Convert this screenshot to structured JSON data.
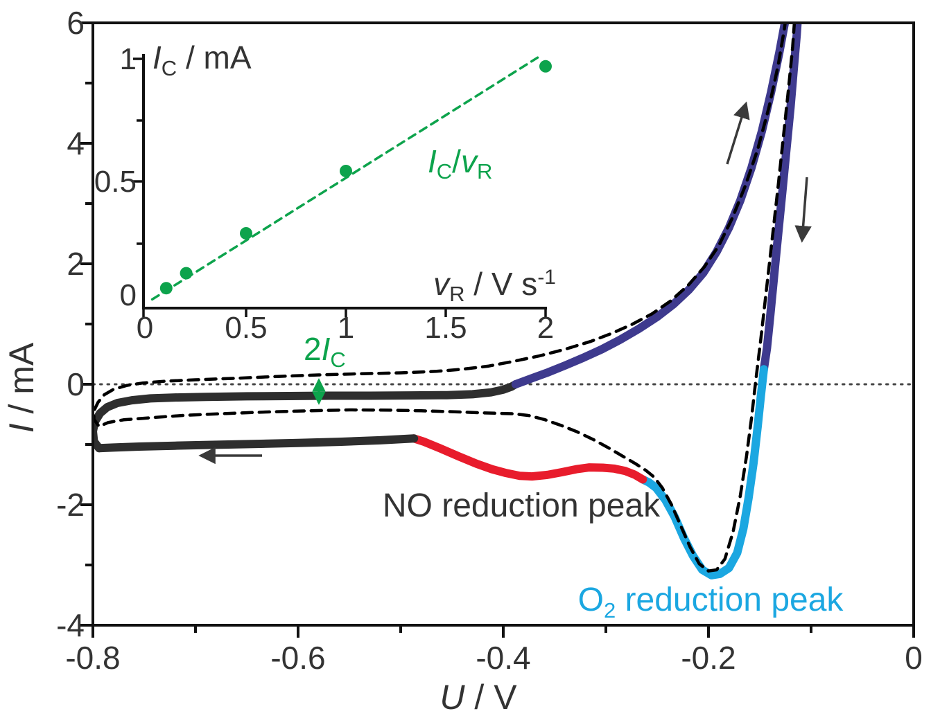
{
  "figure": {
    "description": "Cyclic voltammogram with NO reduction peak, O2 reduction peak and inset of capacitive current vs scan rate",
    "colors": {
      "navy": "#3e3a8e",
      "red": "#e81c2c",
      "cyan": "#1ba7e1",
      "green": "#0da34c",
      "curve_black": "#2e2e2e",
      "dashed_black": "#000000",
      "text_dark": "#333333",
      "arrow_gray": "#3a3a3a"
    }
  },
  "chart_data": [
    {
      "id": "main_cv",
      "type": "line",
      "xlabel": "U / V",
      "xlabel_parts": [
        "U",
        " / V"
      ],
      "ylabel": "I / mA",
      "ylabel_parts": [
        "I",
        " / mA"
      ],
      "xlim": [
        -0.8,
        0
      ],
      "ylim": [
        -4,
        6
      ],
      "x_tick_labels": [
        "-0.8",
        "-0.6",
        "-0.4",
        "-0.2",
        "0"
      ],
      "y_tick_labels": [
        "6",
        "4",
        "2",
        "0",
        "-2",
        "-4"
      ],
      "grid": "off",
      "zero_line": {
        "style": "dotted",
        "points": [
          [
            -0.8,
            0
          ],
          [
            0,
            0
          ]
        ]
      },
      "series": [
        {
          "name": "CV solid measured curve (colored segments)",
          "style": "solid",
          "segments": [
            {
              "part": "cathodic-going down-sweep spike",
              "color": "#3e3a8e",
              "points": [
                [
                  -0.112,
                  6.3
                ],
                [
                  -0.114,
                  5.8
                ],
                [
                  -0.117,
                  5.2
                ],
                [
                  -0.12,
                  4.6
                ],
                [
                  -0.124,
                  3.9
                ],
                [
                  -0.128,
                  3.2
                ],
                [
                  -0.132,
                  2.5
                ],
                [
                  -0.136,
                  1.8
                ],
                [
                  -0.14,
                  1.1
                ],
                [
                  -0.143,
                  0.6
                ],
                [
                  -0.146,
                  0.25
                ]
              ]
            },
            {
              "part": "O2 reduction peak segment",
              "color": "#1ba7e1",
              "points": [
                [
                  -0.146,
                  0.25
                ],
                [
                  -0.149,
                  -0.2
                ],
                [
                  -0.152,
                  -0.7
                ],
                [
                  -0.156,
                  -1.3
                ],
                [
                  -0.161,
                  -1.9
                ],
                [
                  -0.166,
                  -2.4
                ],
                [
                  -0.172,
                  -2.8
                ],
                [
                  -0.18,
                  -3.05
                ],
                [
                  -0.189,
                  -3.15
                ],
                [
                  -0.197,
                  -3.17
                ],
                [
                  -0.206,
                  -3.08
                ],
                [
                  -0.215,
                  -2.85
                ],
                [
                  -0.224,
                  -2.55
                ],
                [
                  -0.233,
                  -2.2
                ],
                [
                  -0.242,
                  -1.92
                ],
                [
                  -0.251,
                  -1.72
                ],
                [
                  -0.258,
                  -1.63
                ],
                [
                  -0.264,
                  -1.58
                ]
              ]
            },
            {
              "part": "NO reduction peak segment",
              "color": "#e81c2c",
              "points": [
                [
                  -0.264,
                  -1.58
                ],
                [
                  -0.272,
                  -1.5
                ],
                [
                  -0.281,
                  -1.44
                ],
                [
                  -0.292,
                  -1.4
                ],
                [
                  -0.303,
                  -1.385
                ],
                [
                  -0.316,
                  -1.38
                ],
                [
                  -0.329,
                  -1.41
                ],
                [
                  -0.343,
                  -1.46
                ],
                [
                  -0.357,
                  -1.505
                ],
                [
                  -0.372,
                  -1.53
                ],
                [
                  -0.384,
                  -1.52
                ],
                [
                  -0.397,
                  -1.475
                ],
                [
                  -0.411,
                  -1.41
                ],
                [
                  -0.426,
                  -1.32
                ],
                [
                  -0.443,
                  -1.2
                ],
                [
                  -0.462,
                  -1.06
                ],
                [
                  -0.478,
                  -0.95
                ],
                [
                  -0.487,
                  -0.9
                ]
              ]
            },
            {
              "part": "lower plateau (scan toward -0.8 V)",
              "color": "#2e2e2e",
              "points": [
                [
                  -0.487,
                  -0.9
                ],
                [
                  -0.52,
                  -0.93
                ],
                [
                  -0.56,
                  -0.955
                ],
                [
                  -0.6,
                  -0.975
                ],
                [
                  -0.64,
                  -0.99
                ],
                [
                  -0.68,
                  -1.005
                ],
                [
                  -0.72,
                  -1.02
                ],
                [
                  -0.755,
                  -1.035
                ],
                [
                  -0.78,
                  -1.05
                ],
                [
                  -0.794,
                  -1.06
                ]
              ]
            },
            {
              "part": "turnaround at -0.8 V and upper plateau",
              "color": "#2e2e2e",
              "points": [
                [
                  -0.794,
                  -1.06
                ],
                [
                  -0.799,
                  -0.95
                ],
                [
                  -0.8,
                  -0.78
                ],
                [
                  -0.798,
                  -0.62
                ],
                [
                  -0.793,
                  -0.48
                ],
                [
                  -0.786,
                  -0.38
                ],
                [
                  -0.776,
                  -0.31
                ],
                [
                  -0.762,
                  -0.265
                ],
                [
                  -0.744,
                  -0.235
                ],
                [
                  -0.72,
                  -0.22
                ],
                [
                  -0.69,
                  -0.21
                ],
                [
                  -0.65,
                  -0.2
                ],
                [
                  -0.61,
                  -0.195
                ],
                [
                  -0.57,
                  -0.19
                ],
                [
                  -0.53,
                  -0.19
                ],
                [
                  -0.49,
                  -0.185
                ],
                [
                  -0.455,
                  -0.18
                ],
                [
                  -0.43,
                  -0.165
                ],
                [
                  -0.412,
                  -0.135
                ],
                [
                  -0.4,
                  -0.09
                ],
                [
                  -0.392,
                  -0.04
                ],
                [
                  -0.388,
                  0.0
                ]
              ]
            },
            {
              "part": "anodic-going up-sweep spike",
              "color": "#3e3a8e",
              "points": [
                [
                  -0.388,
                  0.0
                ],
                [
                  -0.372,
                  0.1
                ],
                [
                  -0.356,
                  0.2
                ],
                [
                  -0.34,
                  0.31
                ],
                [
                  -0.322,
                  0.44
                ],
                [
                  -0.304,
                  0.58
                ],
                [
                  -0.286,
                  0.74
                ],
                [
                  -0.268,
                  0.92
                ],
                [
                  -0.25,
                  1.12
                ],
                [
                  -0.234,
                  1.33
                ],
                [
                  -0.219,
                  1.57
                ],
                [
                  -0.205,
                  1.85
                ],
                [
                  -0.192,
                  2.2
                ],
                [
                  -0.18,
                  2.6
                ],
                [
                  -0.169,
                  3.05
                ],
                [
                  -0.158,
                  3.6
                ],
                [
                  -0.148,
                  4.2
                ],
                [
                  -0.139,
                  4.85
                ],
                [
                  -0.131,
                  5.5
                ],
                [
                  -0.125,
                  6.05
                ],
                [
                  -0.122,
                  6.3
                ]
              ]
            }
          ]
        },
        {
          "name": "background CV (black dashed)",
          "style": "dashed",
          "color": "#000000",
          "points": [
            [
              -0.115,
              6.3
            ],
            [
              -0.118,
              5.6
            ],
            [
              -0.122,
              4.9
            ],
            [
              -0.127,
              4.1
            ],
            [
              -0.132,
              3.3
            ],
            [
              -0.138,
              2.4
            ],
            [
              -0.144,
              1.5
            ],
            [
              -0.149,
              0.75
            ],
            [
              -0.154,
              0.05
            ],
            [
              -0.158,
              -0.55
            ],
            [
              -0.163,
              -1.2
            ],
            [
              -0.169,
              -1.85
            ],
            [
              -0.176,
              -2.45
            ],
            [
              -0.184,
              -2.9
            ],
            [
              -0.192,
              -3.08
            ],
            [
              -0.2,
              -3.1
            ],
            [
              -0.209,
              -2.98
            ],
            [
              -0.218,
              -2.7
            ],
            [
              -0.227,
              -2.35
            ],
            [
              -0.236,
              -2.0
            ],
            [
              -0.245,
              -1.72
            ],
            [
              -0.253,
              -1.54
            ],
            [
              -0.261,
              -1.43
            ],
            [
              -0.271,
              -1.32
            ],
            [
              -0.283,
              -1.2
            ],
            [
              -0.297,
              -1.06
            ],
            [
              -0.312,
              -0.92
            ],
            [
              -0.328,
              -0.79
            ],
            [
              -0.344,
              -0.68
            ],
            [
              -0.36,
              -0.585
            ],
            [
              -0.375,
              -0.52
            ],
            [
              -0.39,
              -0.49
            ],
            [
              -0.42,
              -0.475
            ],
            [
              -0.45,
              -0.455
            ],
            [
              -0.48,
              -0.44
            ],
            [
              -0.51,
              -0.43
            ],
            [
              -0.55,
              -0.425
            ],
            [
              -0.59,
              -0.44
            ],
            [
              -0.63,
              -0.46
            ],
            [
              -0.67,
              -0.485
            ],
            [
              -0.71,
              -0.515
            ],
            [
              -0.74,
              -0.55
            ],
            [
              -0.77,
              -0.59
            ],
            [
              -0.785,
              -0.635
            ],
            [
              -0.794,
              -0.7
            ],
            [
              -0.799,
              -0.58
            ],
            [
              -0.799,
              -0.44
            ],
            [
              -0.795,
              -0.3
            ],
            [
              -0.789,
              -0.175
            ],
            [
              -0.78,
              -0.085
            ],
            [
              -0.767,
              -0.02
            ],
            [
              -0.752,
              0.02
            ],
            [
              -0.73,
              0.05
            ],
            [
              -0.7,
              0.075
            ],
            [
              -0.66,
              0.1
            ],
            [
              -0.62,
              0.13
            ],
            [
              -0.58,
              0.155
            ],
            [
              -0.54,
              0.175
            ],
            [
              -0.5,
              0.19
            ],
            [
              -0.465,
              0.215
            ],
            [
              -0.44,
              0.25
            ],
            [
              -0.415,
              0.3
            ],
            [
              -0.39,
              0.38
            ],
            [
              -0.365,
              0.47
            ],
            [
              -0.34,
              0.58
            ],
            [
              -0.315,
              0.71
            ],
            [
              -0.295,
              0.84
            ],
            [
              -0.275,
              0.99
            ],
            [
              -0.255,
              1.17
            ],
            [
              -0.237,
              1.38
            ],
            [
              -0.22,
              1.64
            ],
            [
              -0.204,
              1.95
            ],
            [
              -0.19,
              2.3
            ],
            [
              -0.177,
              2.75
            ],
            [
              -0.164,
              3.3
            ],
            [
              -0.152,
              3.9
            ],
            [
              -0.141,
              4.6
            ],
            [
              -0.132,
              5.3
            ],
            [
              -0.126,
              5.9
            ],
            [
              -0.123,
              6.3
            ]
          ]
        },
        {
          "name": "zero current dotted line",
          "style": "dotted",
          "color": "#444444",
          "points": [
            [
              -0.8,
              0
            ],
            [
              0,
              0
            ]
          ]
        }
      ],
      "annotations": [
        {
          "id": "no_peak",
          "text": "NO reduction peak",
          "color": "#e81c2c"
        },
        {
          "id": "o2_peak",
          "text_parts": [
            "O",
            "2",
            " reduction peak"
          ],
          "color": "#1ba7e1"
        },
        {
          "id": "capacitive_gap",
          "text_parts": [
            "2",
            "I",
            "C"
          ],
          "color": "#0da34c"
        },
        {
          "id": "scan_direction_arrows",
          "description": "up arrow on rising spike, down arrow on falling spike, left arrow on lower plateau",
          "color": "#3a3a3a"
        }
      ]
    },
    {
      "id": "inset_capacitive_current",
      "type": "scatter",
      "xlabel": "vR / V s-1",
      "xlabel_parts": [
        "v",
        "R",
        " / V s",
        "-1"
      ],
      "ylabel": "IC / mA",
      "ylabel_parts": [
        "I",
        "C",
        " / mA"
      ],
      "xlim": [
        0,
        2
      ],
      "ylim": [
        0,
        1
      ],
      "x_tick_labels": [
        "0",
        "0.5",
        "1",
        "1.5",
        "2"
      ],
      "y_tick_labels": [
        "1",
        "0.5",
        "0"
      ],
      "grid": "off",
      "point_color": "#0da34c",
      "points": [
        [
          0.1,
          0.08
        ],
        [
          0.2,
          0.14
        ],
        [
          0.5,
          0.3
        ],
        [
          1.0,
          0.55
        ],
        [
          2.0,
          0.97
        ]
      ],
      "fit": {
        "style": "dashed",
        "color": "#0da34c",
        "points": [
          [
            0.03,
            0.035
          ],
          [
            1.96,
            1.005
          ]
        ],
        "label": "IC/vR",
        "label_parts": [
          "I",
          "C",
          "/",
          "v",
          "R"
        ]
      }
    }
  ]
}
